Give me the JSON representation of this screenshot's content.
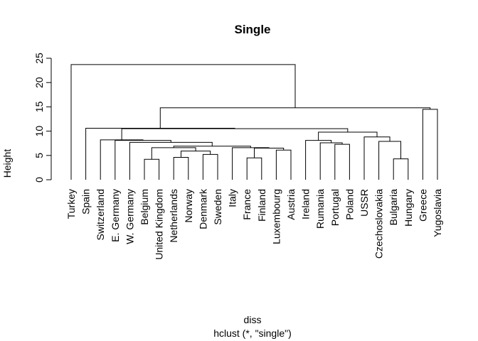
{
  "chart_data": {
    "type": "dendrogram",
    "title": "Single",
    "ylabel": "Height",
    "xlabel": "diss",
    "sub": "hclust (*, \"single\")",
    "ylim": [
      0,
      25
    ],
    "yticks": [
      "0",
      "5",
      "10",
      "15",
      "20",
      "25"
    ],
    "leaves": [
      "Turkey",
      "Spain",
      "Switzerland",
      "E. Germany",
      "W. Germany",
      "Belgium",
      "United Kingdom",
      "Netherlands",
      "Norway",
      "Denmark",
      "Sweden",
      "Italy",
      "France",
      "Finland",
      "Luxembourg",
      "Austria",
      "Ireland",
      "Rumania",
      "Portugal",
      "Poland",
      "USSR",
      "Czechoslovakia",
      "Bulgaria",
      "Hungary",
      "Greece",
      "Yugoslavia"
    ],
    "merges": [
      {
        "a": "Belgium",
        "b": "United Kingdom",
        "height": 4.2
      },
      {
        "a": "Bulgaria",
        "b": "Hungary",
        "height": 4.3
      },
      {
        "a": "France",
        "b": "Finland",
        "height": 4.5
      },
      {
        "a": "Netherlands",
        "b": "Norway",
        "height": 4.6
      },
      {
        "a": "Denmark",
        "b": "Sweden",
        "height": 5.2
      },
      {
        "a": "m4",
        "b": "m5",
        "height": 5.9
      },
      {
        "a": "Luxembourg",
        "b": "Austria",
        "height": 6.1
      },
      {
        "a": "m3",
        "b": "m7",
        "height": 6.5
      },
      {
        "a": "m1",
        "b": "m6",
        "height": 6.6
      },
      {
        "a": "Italy",
        "b": "m8",
        "height": 6.6
      },
      {
        "a": "m9",
        "b": "m10",
        "height": 6.9
      },
      {
        "a": "Portugal",
        "b": "Poland",
        "height": 7.3
      },
      {
        "a": "Rumania",
        "b": "m12",
        "height": 7.6
      },
      {
        "a": "W. Germany",
        "b": "m11",
        "height": 7.7
      },
      {
        "a": "Czechoslovakia",
        "b": "m2",
        "height": 7.9
      },
      {
        "a": "Ireland",
        "b": "m13",
        "height": 8.1
      },
      {
        "a": "E. Germany",
        "b": "m14",
        "height": 8.1
      },
      {
        "a": "Switzerland",
        "b": "m17",
        "height": 8.2
      },
      {
        "a": "USSR",
        "b": "m15",
        "height": 8.8
      },
      {
        "a": "m16",
        "b": "m19",
        "height": 9.8
      },
      {
        "a": "m18",
        "b": "m20",
        "height": 10.5
      },
      {
        "a": "Spain",
        "b": "m21",
        "height": 10.6
      },
      {
        "a": "Greece",
        "b": "Yugoslavia",
        "height": 14.5
      },
      {
        "a": "m22",
        "b": "m23",
        "height": 14.8
      },
      {
        "a": "Turkey",
        "b": "m24",
        "height": 23.7
      }
    ]
  }
}
